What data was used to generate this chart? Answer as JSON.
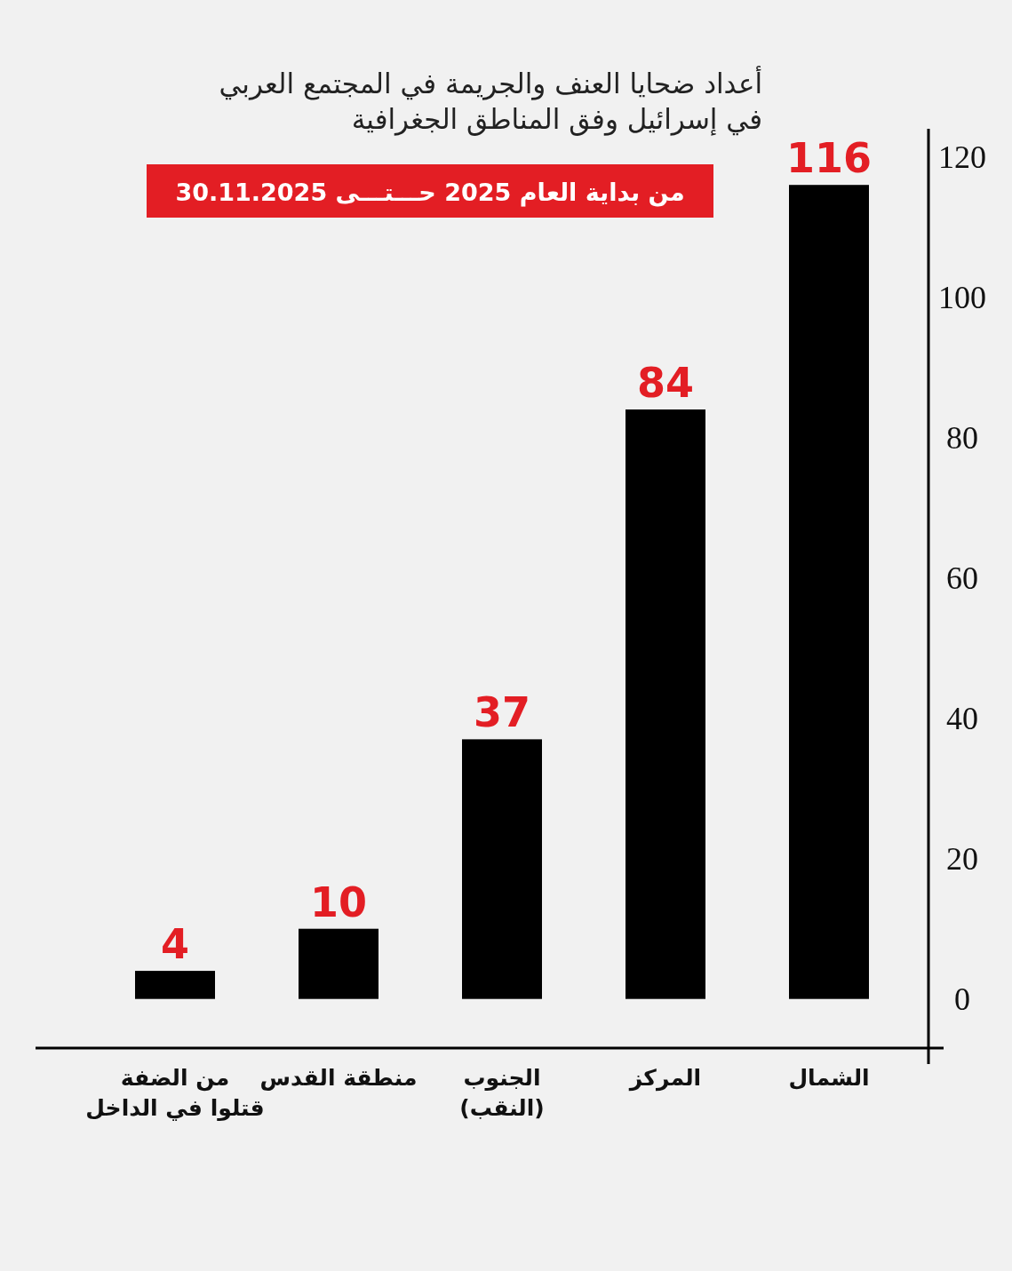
{
  "chart_data": {
    "type": "bar",
    "title": "أعداد ضحايا العنف والجريمة في المجتمع العربي\nفي إسرائيل وفق المناطق الجغرافية",
    "subtitle": "من بداية العام 2025 حـــتـــى 30.11.2025",
    "categories": [
      "من الضفة\nقتلوا في الداخل",
      "منطقة القدس",
      "الجنوب\n(النقب)",
      "المركز",
      "الشمال"
    ],
    "values": [
      4,
      10,
      37,
      84,
      116
    ],
    "color": "#000000",
    "ylim": [
      -7,
      124
    ],
    "yticks": [
      0,
      20,
      40,
      60,
      80,
      100,
      120
    ],
    "data_labels": true
  }
}
